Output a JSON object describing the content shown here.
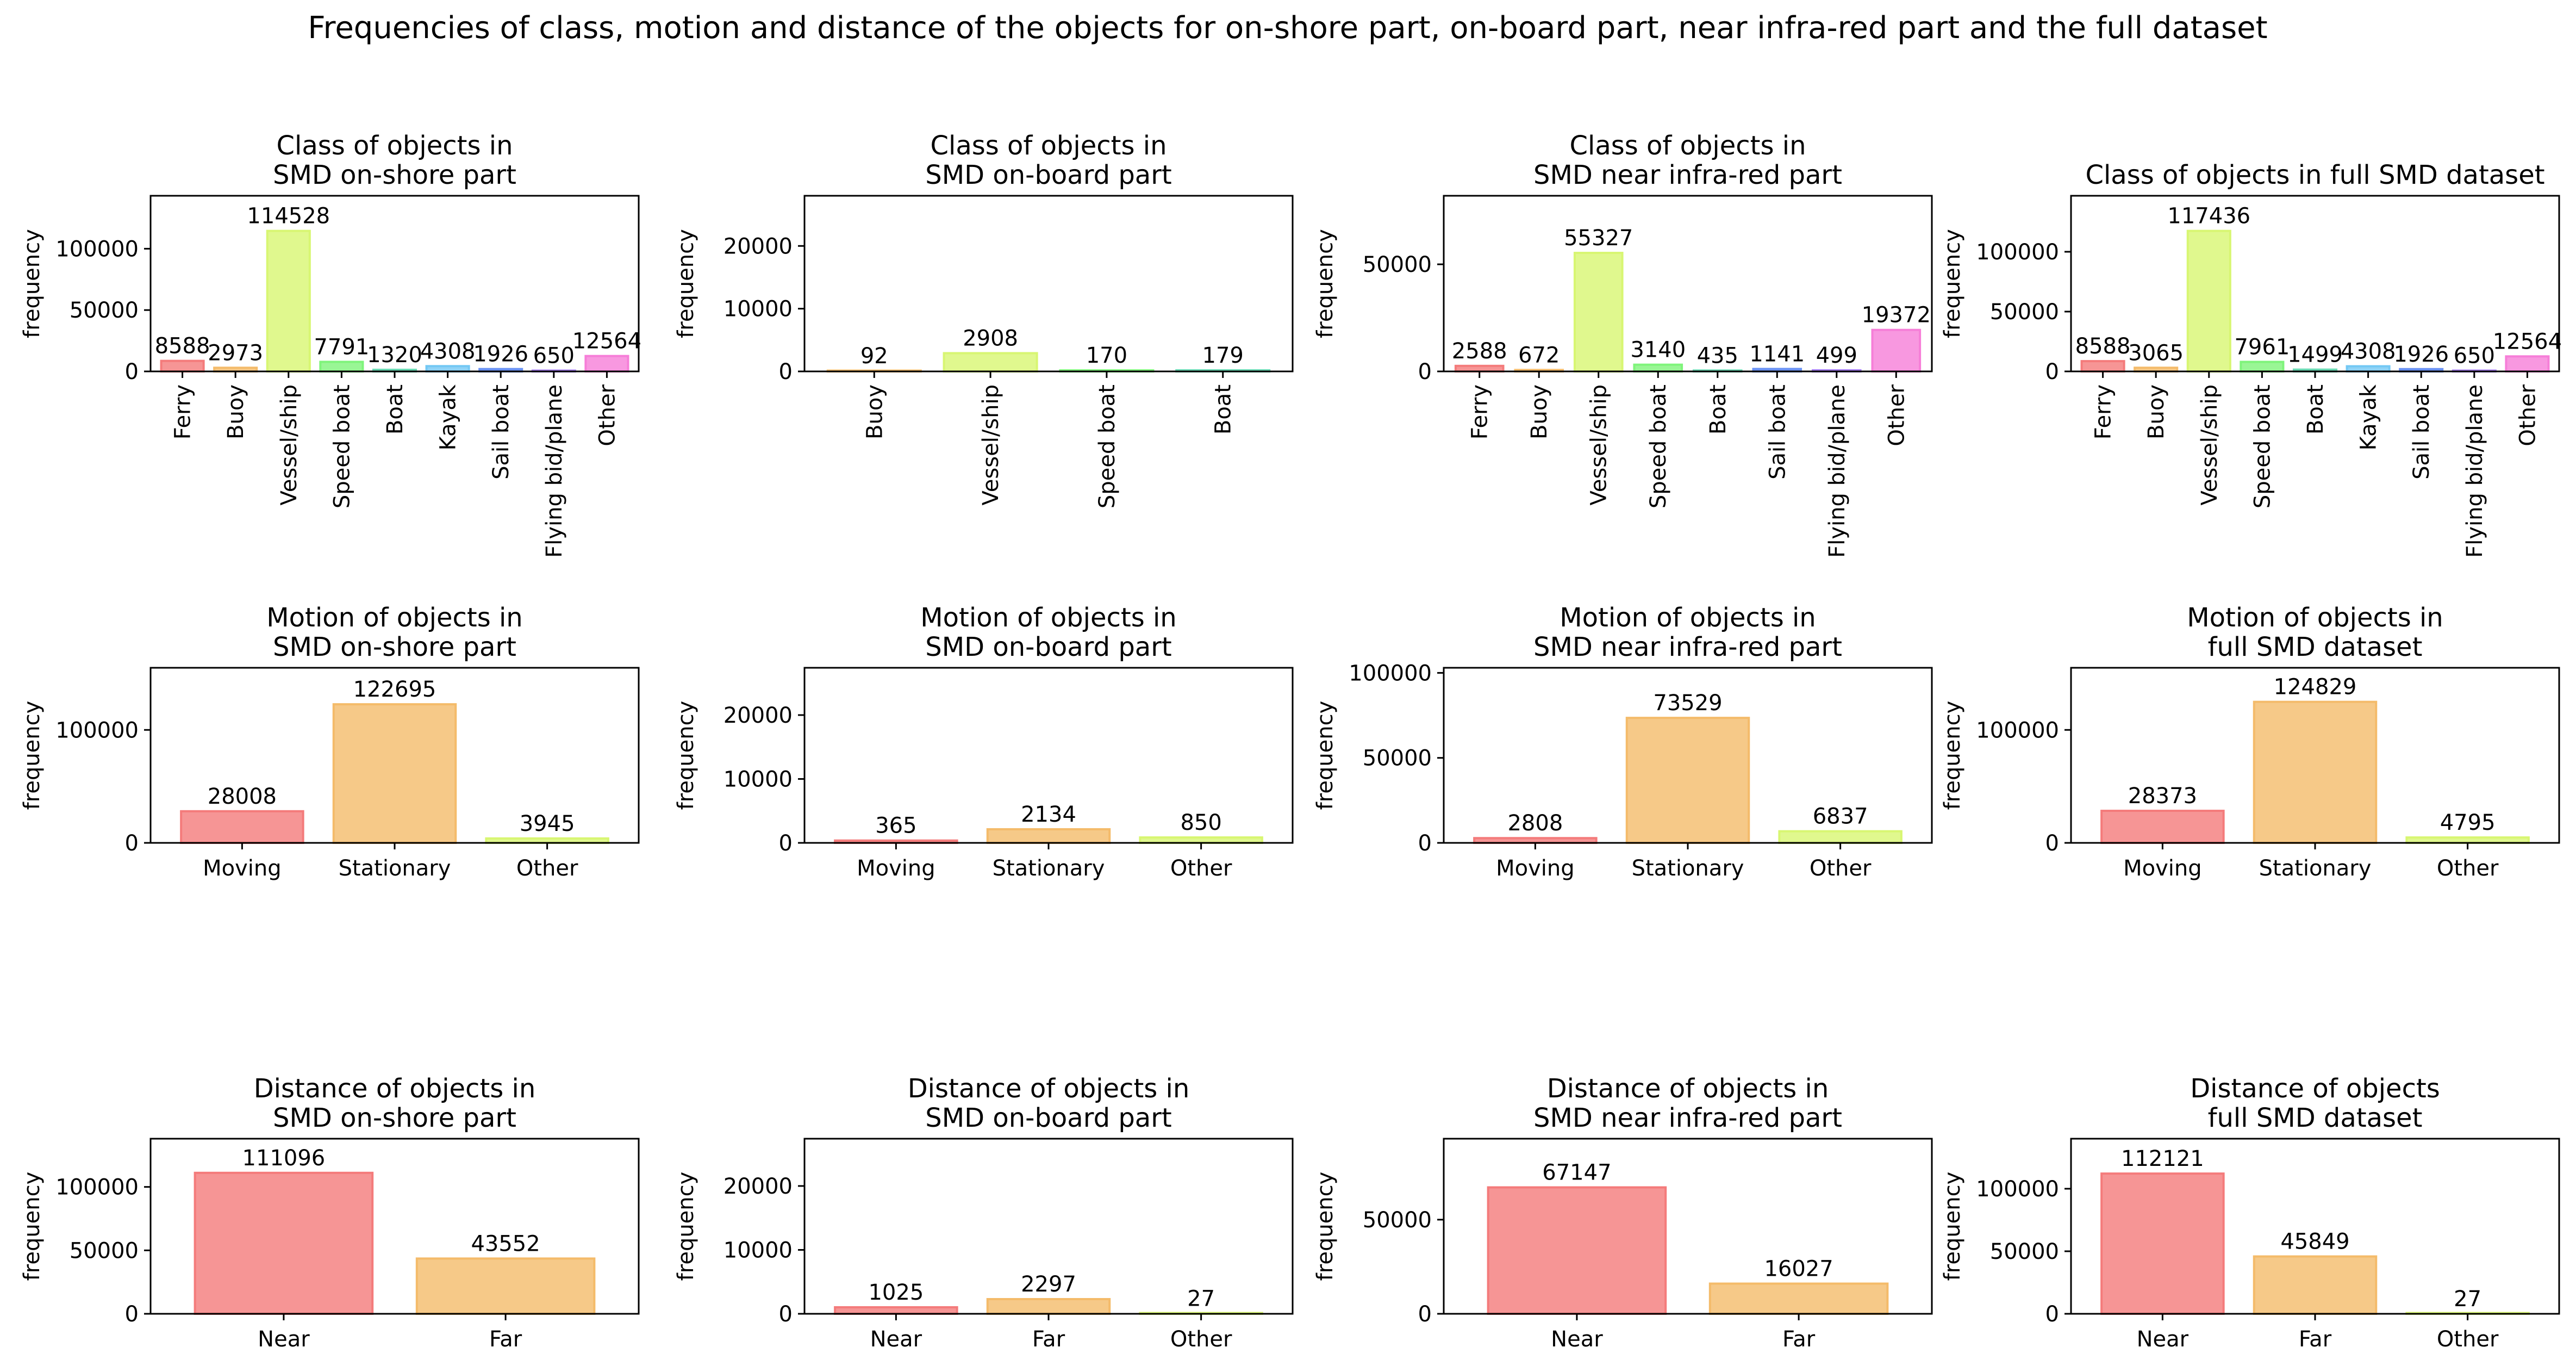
{
  "figure": {
    "title": "Frequencies of class, motion and distance of the objects for on-shore part, on-board part, near infra-red part and the full dataset"
  },
  "palette": [
    "#f47b7b",
    "#f4bb6a",
    "#d8f672",
    "#7ff47b",
    "#6bd9b4",
    "#73c8f4",
    "#6a92f4",
    "#a67ef4",
    "#f67ed8"
  ],
  "chart_data": [
    {
      "type": "bar",
      "title": "Class of objects in\nSMD on-shore part",
      "ylabel": "frequency",
      "ylim": [
        0,
        143160
      ],
      "yticks": [
        0,
        50000,
        100000
      ],
      "label_rotation": 90,
      "categories": [
        "Ferry",
        "Buoy",
        "Vessel/ship",
        "Speed boat",
        "Boat",
        "Kayak",
        "Sail boat",
        "Flying bid/plane",
        "Other"
      ],
      "values": [
        8588,
        2973,
        114528,
        7791,
        1320,
        4308,
        1926,
        650,
        12564
      ],
      "value_labels": [
        "8588",
        "2973",
        "114528",
        "7791",
        "1320",
        "4308",
        "1926",
        "650",
        "12564"
      ],
      "colors": [
        0,
        1,
        2,
        3,
        4,
        5,
        6,
        7,
        8
      ]
    },
    {
      "type": "bar",
      "title": "Class of objects in\nSMD on-board part",
      "ylabel": "frequency",
      "ylim": [
        0,
        28000
      ],
      "yticks": [
        0,
        10000,
        20000
      ],
      "label_rotation": 90,
      "categories": [
        "Buoy",
        "Vessel/ship",
        "Speed boat",
        "Boat"
      ],
      "values": [
        92,
        2908,
        170,
        179
      ],
      "value_labels": [
        "92",
        "2908",
        "170",
        "179"
      ],
      "colors": [
        1,
        2,
        3,
        4
      ]
    },
    {
      "type": "bar",
      "title": "Class of objects in\nSMD near infra-red part",
      "ylabel": "frequency",
      "ylim": [
        0,
        82000
      ],
      "yticks": [
        0,
        50000
      ],
      "label_rotation": 90,
      "categories": [
        "Ferry",
        "Buoy",
        "Vessel/ship",
        "Speed boat",
        "Boat",
        "Sail boat",
        "Flying bid/plane",
        "Other"
      ],
      "values": [
        2588,
        672,
        55327,
        3140,
        435,
        1141,
        499,
        19372
      ],
      "value_labels": [
        "2588",
        "672",
        "55327",
        "3140",
        "435",
        "1141",
        "499",
        "19372"
      ],
      "colors": [
        0,
        1,
        2,
        3,
        4,
        6,
        7,
        8
      ]
    },
    {
      "type": "bar",
      "title": "Class of objects in full SMD dataset",
      "ylabel": "frequency",
      "ylim": [
        0,
        146800
      ],
      "yticks": [
        0,
        50000,
        100000
      ],
      "label_rotation": 90,
      "categories": [
        "Ferry",
        "Buoy",
        "Vessel/ship",
        "Speed boat",
        "Boat",
        "Kayak",
        "Sail boat",
        "Flying bid/plane",
        "Other"
      ],
      "values": [
        8588,
        3065,
        117436,
        7961,
        1499,
        4308,
        1926,
        650,
        12564
      ],
      "value_labels": [
        "8588",
        "3065",
        "117436",
        "7961",
        "1499",
        "4308",
        "1926",
        "650",
        "12564"
      ],
      "colors": [
        0,
        1,
        2,
        3,
        4,
        5,
        6,
        7,
        8
      ]
    },
    {
      "type": "bar",
      "title": "Motion of objects in\nSMD on-shore part",
      "ylabel": "frequency",
      "ylim": [
        0,
        155000
      ],
      "yticks": [
        0,
        100000
      ],
      "label_rotation": 0,
      "categories": [
        "Moving",
        "Stationary",
        "Other"
      ],
      "values": [
        28008,
        122695,
        3945
      ],
      "value_labels": [
        "28008",
        "122695",
        "3945"
      ],
      "colors": [
        0,
        1,
        2
      ]
    },
    {
      "type": "bar",
      "title": "Motion of objects in\nSMD on-board part",
      "ylabel": "frequency",
      "ylim": [
        0,
        27400
      ],
      "yticks": [
        0,
        10000,
        20000
      ],
      "label_rotation": 0,
      "categories": [
        "Moving",
        "Stationary",
        "Other"
      ],
      "values": [
        365,
        2134,
        850
      ],
      "value_labels": [
        "365",
        "2134",
        "850"
      ],
      "colors": [
        0,
        1,
        2
      ]
    },
    {
      "type": "bar",
      "title": "Motion of objects in\nSMD near infra-red part",
      "ylabel": "frequency",
      "ylim": [
        0,
        103000
      ],
      "yticks": [
        0,
        50000,
        100000
      ],
      "label_rotation": 0,
      "categories": [
        "Moving",
        "Stationary",
        "Other"
      ],
      "values": [
        2808,
        73529,
        6837
      ],
      "value_labels": [
        "2808",
        "73529",
        "6837"
      ],
      "colors": [
        0,
        1,
        2
      ]
    },
    {
      "type": "bar",
      "title": "Motion of objects in\nfull SMD dataset",
      "ylabel": "frequency",
      "ylim": [
        0,
        155000
      ],
      "yticks": [
        0,
        100000
      ],
      "label_rotation": 0,
      "categories": [
        "Moving",
        "Stationary",
        "Other"
      ],
      "values": [
        28373,
        124829,
        4795
      ],
      "value_labels": [
        "28373",
        "124829",
        "4795"
      ],
      "colors": [
        0,
        1,
        2
      ]
    },
    {
      "type": "bar",
      "title": "Distance of objects in\nSMD on-shore part",
      "ylabel": "frequency",
      "ylim": [
        0,
        138000
      ],
      "yticks": [
        0,
        50000,
        100000
      ],
      "label_rotation": 0,
      "categories": [
        "Near",
        "Far"
      ],
      "values": [
        111096,
        43552
      ],
      "value_labels": [
        "111096",
        "43552"
      ],
      "colors": [
        0,
        1
      ]
    },
    {
      "type": "bar",
      "title": "Distance of objects in\nSMD on-board part",
      "ylabel": "frequency",
      "ylim": [
        0,
        27400
      ],
      "yticks": [
        0,
        10000,
        20000
      ],
      "label_rotation": 0,
      "categories": [
        "Near",
        "Far",
        "Other"
      ],
      "values": [
        1025,
        2297,
        27
      ],
      "value_labels": [
        "1025",
        "2297",
        "27"
      ],
      "colors": [
        0,
        1,
        2
      ]
    },
    {
      "type": "bar",
      "title": "Distance of objects in\nSMD near infra-red part",
      "ylabel": "frequency",
      "ylim": [
        0,
        93000
      ],
      "yticks": [
        0,
        50000
      ],
      "label_rotation": 0,
      "categories": [
        "Near",
        "Far"
      ],
      "values": [
        67147,
        16027
      ],
      "value_labels": [
        "67147",
        "16027"
      ],
      "colors": [
        0,
        1
      ]
    },
    {
      "type": "bar",
      "title": "Distance of objects\nfull SMD dataset",
      "ylabel": "frequency",
      "ylim": [
        0,
        140000
      ],
      "yticks": [
        0,
        50000,
        100000
      ],
      "label_rotation": 0,
      "categories": [
        "Near",
        "Far",
        "Other"
      ],
      "values": [
        112121,
        45849,
        27
      ],
      "value_labels": [
        "112121",
        "45849",
        "27"
      ],
      "colors": [
        0,
        1,
        2
      ]
    }
  ]
}
